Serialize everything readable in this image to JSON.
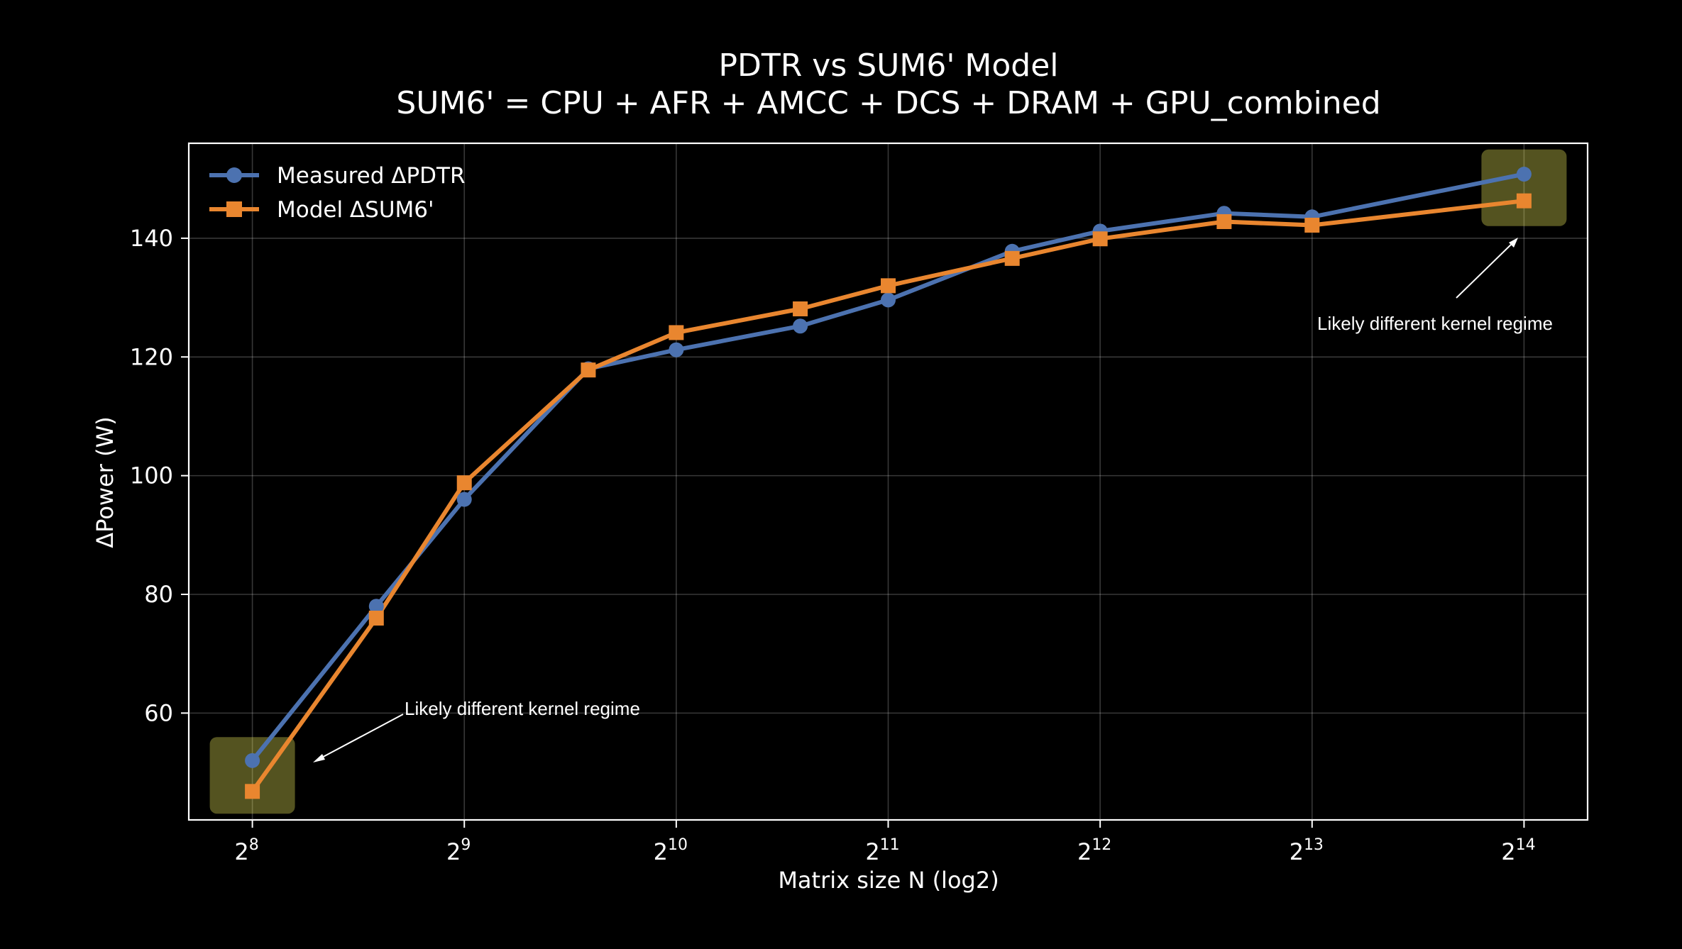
{
  "chart_data": {
    "type": "line",
    "title_line1": "PDTR vs SUM6' Model",
    "title_line2": "SUM6' = CPU + AFR + AMCC + DCS + DRAM + GPU_combined",
    "xlabel": "Matrix size N (log2)",
    "ylabel": "ΔPower (W)",
    "xscale": "log2",
    "xlim_log2": [
      7.7,
      14.3
    ],
    "ylim": [
      42,
      156
    ],
    "x_ticks": [
      {
        "base": "2",
        "exp": "8",
        "log2": 8
      },
      {
        "base": "2",
        "exp": "9",
        "log2": 9
      },
      {
        "base": "2",
        "exp": "10",
        "log2": 10
      },
      {
        "base": "2",
        "exp": "11",
        "log2": 11
      },
      {
        "base": "2",
        "exp": "12",
        "log2": 12
      },
      {
        "base": "2",
        "exp": "13",
        "log2": 13
      },
      {
        "base": "2",
        "exp": "14",
        "log2": 14
      }
    ],
    "y_ticks": [
      {
        "label": "60",
        "value": 60
      },
      {
        "label": "80",
        "value": 80
      },
      {
        "label": "100",
        "value": 100
      },
      {
        "label": "120",
        "value": 120
      },
      {
        "label": "140",
        "value": 140
      }
    ],
    "grid": true,
    "legend_position": "top-left",
    "x_log2": [
      8,
      8.585,
      9,
      9.585,
      10,
      10.585,
      11,
      11.585,
      12,
      12.585,
      13,
      14
    ],
    "x": [
      256,
      384,
      512,
      768,
      1024,
      1536,
      2048,
      3072,
      4096,
      6144,
      8192,
      16384
    ],
    "series": [
      {
        "name": "Measured ΔPDTR",
        "color": "#4c72b0",
        "marker": "circle",
        "values": [
          52.0,
          78.0,
          96.0,
          118.0,
          121.2,
          125.2,
          129.6,
          137.8,
          141.2,
          144.2,
          143.6,
          150.8
        ]
      },
      {
        "name": "Model ΔSUM6'",
        "color": "#e9862f",
        "marker": "square",
        "values": [
          46.8,
          76.0,
          98.8,
          117.8,
          124.1,
          128.1,
          132.0,
          136.6,
          139.9,
          142.8,
          142.2,
          146.3
        ]
      }
    ],
    "highlights": [
      {
        "x_log2": 8,
        "y_value": 49.5,
        "color": "#fffb60",
        "annotation": "Likely different kernel regime"
      },
      {
        "x_log2": 14,
        "y_value": 148.5,
        "color": "#fffb60",
        "annotation": "Likely different kernel regime"
      }
    ]
  }
}
